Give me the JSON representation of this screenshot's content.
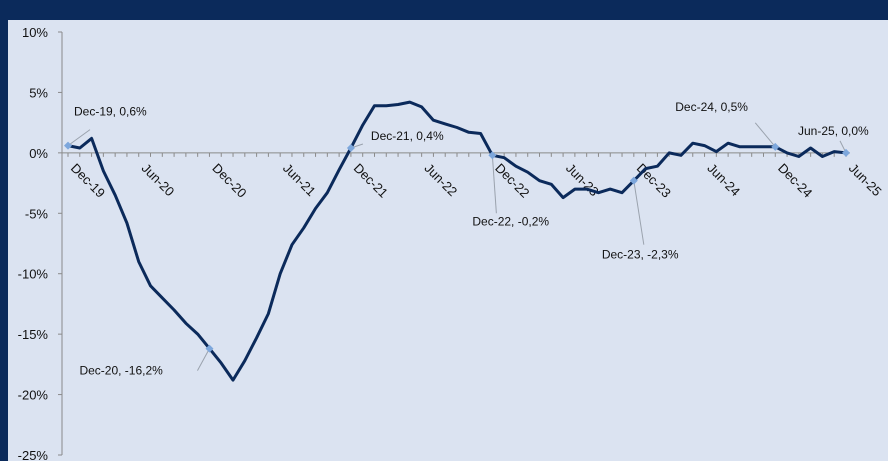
{
  "chart_data": {
    "type": "line",
    "title": "",
    "xlabel": "",
    "ylabel": "",
    "ylim": [
      -25,
      10
    ],
    "y_ticks": [
      "10%",
      "5%",
      "0%",
      "-5%",
      "-10%",
      "-15%",
      "-20%",
      "-25%"
    ],
    "y_tick_values": [
      10,
      5,
      0,
      -5,
      -10,
      -15,
      -20,
      -25
    ],
    "x_tick_labels": [
      "Dec-19",
      "Jun-20",
      "Dec-20",
      "Jun-21",
      "Dec-21",
      "Jun-22",
      "Dec-22",
      "Jun-23",
      "Dec-23",
      "Jun-24",
      "Dec-24",
      "Jun-25"
    ],
    "x_tick_months": [
      0,
      6,
      12,
      18,
      24,
      30,
      36,
      42,
      48,
      54,
      60,
      66
    ],
    "grid": false,
    "legend": "none",
    "series": [
      {
        "color": "#0b2a5b",
        "months": [
          0,
          1,
          2,
          3,
          4,
          5,
          6,
          7,
          8,
          9,
          10,
          11,
          12,
          13,
          14,
          15,
          16,
          17,
          18,
          19,
          20,
          21,
          22,
          23,
          24,
          25,
          26,
          27,
          28,
          29,
          30,
          31,
          32,
          33,
          34,
          35,
          36,
          37,
          38,
          39,
          40,
          41,
          42,
          43,
          44,
          45,
          46,
          47,
          48,
          49,
          50,
          51,
          52,
          53,
          54,
          55,
          56,
          57,
          58,
          59,
          60,
          61,
          62,
          63,
          64,
          65,
          66
        ],
        "values": [
          0.6,
          0.4,
          1.2,
          -1.5,
          -3.5,
          -5.8,
          -9.0,
          -11.0,
          -12.0,
          -13.0,
          -14.1,
          -15.0,
          -16.2,
          -17.4,
          -18.8,
          -17.2,
          -15.3,
          -13.3,
          -10.0,
          -7.6,
          -6.2,
          -4.6,
          -3.3,
          -1.4,
          0.4,
          2.3,
          3.9,
          3.9,
          4.0,
          4.2,
          3.8,
          2.7,
          2.4,
          2.1,
          1.7,
          1.6,
          -0.2,
          -0.4,
          -1.1,
          -1.6,
          -2.3,
          -2.6,
          -3.7,
          -3.0,
          -3.0,
          -3.3,
          -3.0,
          -3.3,
          -2.3,
          -1.3,
          -1.1,
          0.0,
          -0.2,
          0.8,
          0.6,
          0.1,
          0.8,
          0.5,
          0.5,
          0.5,
          0.5,
          0.0,
          -0.3,
          0.4,
          -0.3,
          0.1,
          0.0
        ]
      }
    ],
    "annotations": [
      {
        "text": "Dec-19, 0,6%",
        "month": 0,
        "value": 0.6
      },
      {
        "text": "Dec-20, -16,2%",
        "month": 12,
        "value": -16.2
      },
      {
        "text": "Dec-21, 0,4%",
        "month": 24,
        "value": 0.4
      },
      {
        "text": "Dec-22, -0,2%",
        "month": 36,
        "value": -0.2
      },
      {
        "text": "Dec-23, -2,3%",
        "month": 48,
        "value": -2.3
      },
      {
        "text": "Dec-24, 0,5%",
        "month": 60,
        "value": 0.5
      },
      {
        "text": "Jun-25, 0,0%",
        "month": 66,
        "value": 0.0
      }
    ]
  }
}
